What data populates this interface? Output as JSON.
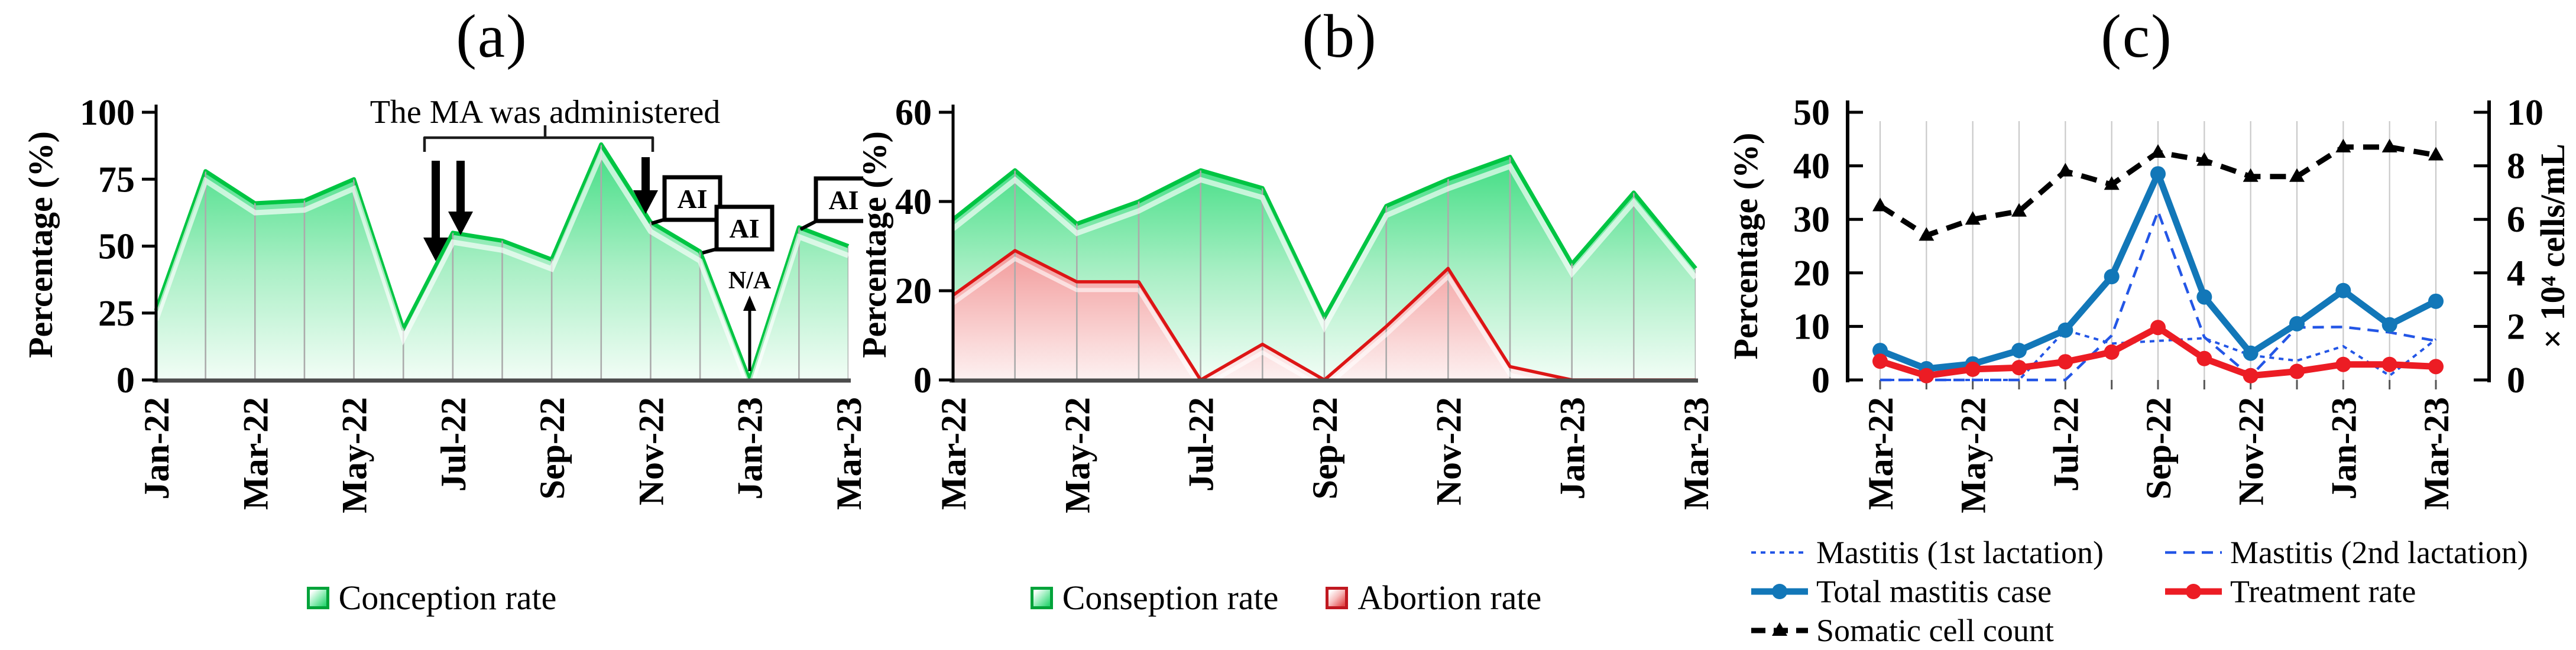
{
  "figure": {
    "background": "#ffffff",
    "panel_titles": [
      "(a)",
      "(b)",
      "(c)"
    ]
  },
  "colors": {
    "green_edge": "#00c543",
    "green_fill_top": "#3fdd82",
    "green_fill_mid": "#a9efc5",
    "green_fill_bottom": "#f2fdf6",
    "red_edge": "#dd1515",
    "red_fill_top": "#f29a9a",
    "red_fill_bottom": "#fdf1f1",
    "blue_total": "#1277b8",
    "blue_lactation": "#2356e6",
    "red_treatment": "#ec1c24",
    "somatic_black": "#000000",
    "gridline": "#ababab",
    "axis": "#000000"
  },
  "chart_data": [
    {
      "type": "area",
      "title": "(a)",
      "ylabel": "Percentage (%)",
      "ylim": [
        0,
        100
      ],
      "yticks": [
        "0",
        "25",
        "50",
        "75",
        "100"
      ],
      "grid": "vertical-inside-area",
      "legend_position": "bottom-center",
      "categories": [
        "Jan-22",
        "Feb-22",
        "Mar-22",
        "Apr-22",
        "May-22",
        "Jun-22",
        "Jul-22",
        "Aug-22",
        "Sep-22",
        "Oct-22",
        "Nov-22",
        "Dec-22",
        "Jan-23",
        "Feb-23",
        "Mar-23"
      ],
      "x_ticks_shown": [
        "Jan-22",
        "Mar-22",
        "May-22",
        "Jul-22",
        "Sep-22",
        "Nov-22",
        "Jan-23",
        "Mar-23"
      ],
      "series": [
        {
          "name": "Conception rate",
          "values": [
            26,
            78,
            66,
            67,
            75,
            19,
            55,
            52,
            45,
            88,
            59,
            48,
            0,
            57,
            50
          ]
        }
      ],
      "annotations": {
        "brace_label": "The MA was administered",
        "brace_span": [
          "Jul-22",
          "Nov-22"
        ],
        "arrow_months": [
          "Jun-22",
          "Jul-22",
          "Nov-22"
        ],
        "ai_label": "AI",
        "ai_months": [
          "Nov-22",
          "Dec-22",
          "Feb-23"
        ],
        "na_label": "N/A",
        "na_month": "Jan-23"
      }
    },
    {
      "type": "area",
      "title": "(b)",
      "ylabel": "Percentage (%)",
      "ylim": [
        0,
        60
      ],
      "yticks": [
        "0",
        "20",
        "40",
        "60"
      ],
      "grid": "vertical-inside-area",
      "legend_position": "bottom-center",
      "categories": [
        "Mar-22",
        "Apr-22",
        "May-22",
        "Jun-22",
        "Jul-22",
        "Aug-22",
        "Sep-22",
        "Oct-22",
        "Nov-22",
        "Dec-22",
        "Jan-23",
        "Feb-23",
        "Mar-23"
      ],
      "x_ticks_shown": [
        "Mar-22",
        "May-22",
        "Jul-22",
        "Sep-22",
        "Nov-22",
        "Jan-23",
        "Mar-23"
      ],
      "series": [
        {
          "name": "Conseption rate",
          "values": [
            36,
            47,
            35,
            40,
            47,
            43,
            14,
            39,
            45,
            50,
            26,
            42,
            25
          ]
        },
        {
          "name": "Abortion rate",
          "values": [
            19,
            29,
            22,
            22,
            0,
            8,
            0,
            12,
            25,
            3,
            0,
            0,
            0
          ]
        }
      ]
    },
    {
      "type": "line",
      "title": "(c)",
      "ylabel_left": "Percentage (%)",
      "ylabel_right": "× 10⁴ cells/mL",
      "ylim_left": [
        0,
        50
      ],
      "ylim_right": [
        0,
        10
      ],
      "yticks_left": [
        "0",
        "10",
        "20",
        "30",
        "40",
        "50"
      ],
      "yticks_right": [
        "0",
        "2",
        "4",
        "6",
        "8",
        "10"
      ],
      "grid": "vertical",
      "legend_position": "bottom-two-columns",
      "categories": [
        "Mar-22",
        "Apr-22",
        "May-22",
        "Jun-22",
        "Jul-22",
        "Aug-22",
        "Sep-22",
        "Oct-22",
        "Nov-22",
        "Dec-22",
        "Jan-23",
        "Feb-23",
        "Mar-23"
      ],
      "x_ticks_shown": [
        "Mar-22",
        "May-22",
        "Jul-22",
        "Sep-22",
        "Nov-22",
        "Jan-23",
        "Mar-23"
      ],
      "series": [
        {
          "name": "Mastitis (1st lactation)",
          "axis": "left",
          "style": "dotted",
          "marker": "none",
          "values": [
            0,
            0,
            0,
            0,
            9.3,
            6.8,
            7.3,
            7.8,
            4.6,
            3.6,
            6.3,
            0.8,
            7.6
          ]
        },
        {
          "name": "Mastitis (2nd lactation)",
          "axis": "left",
          "style": "dashed",
          "marker": "none",
          "values": [
            0,
            0,
            0,
            0,
            0,
            8.3,
            31.5,
            8.0,
            0.7,
            9.8,
            9.9,
            8.9,
            7.3
          ]
        },
        {
          "name": "Total mastitis case",
          "axis": "left",
          "style": "solid",
          "marker": "circle",
          "values": [
            5.5,
            2.1,
            3.0,
            5.5,
            9.3,
            19.3,
            38.5,
            15.5,
            5.0,
            10.5,
            16.7,
            10.3,
            14.7
          ]
        },
        {
          "name": "Treatment rate",
          "axis": "left",
          "style": "solid",
          "marker": "circle",
          "values": [
            3.5,
            0.8,
            2.0,
            2.3,
            3.4,
            5.2,
            9.8,
            4.0,
            0.8,
            1.6,
            2.9,
            2.9,
            2.5
          ]
        },
        {
          "name": "Somatic cell count",
          "axis": "right",
          "style": "long-dash",
          "marker": "triangle",
          "values": [
            6.5,
            5.4,
            6.0,
            6.3,
            7.8,
            7.3,
            8.5,
            8.2,
            7.6,
            7.6,
            8.7,
            8.7,
            8.4
          ]
        }
      ]
    }
  ]
}
